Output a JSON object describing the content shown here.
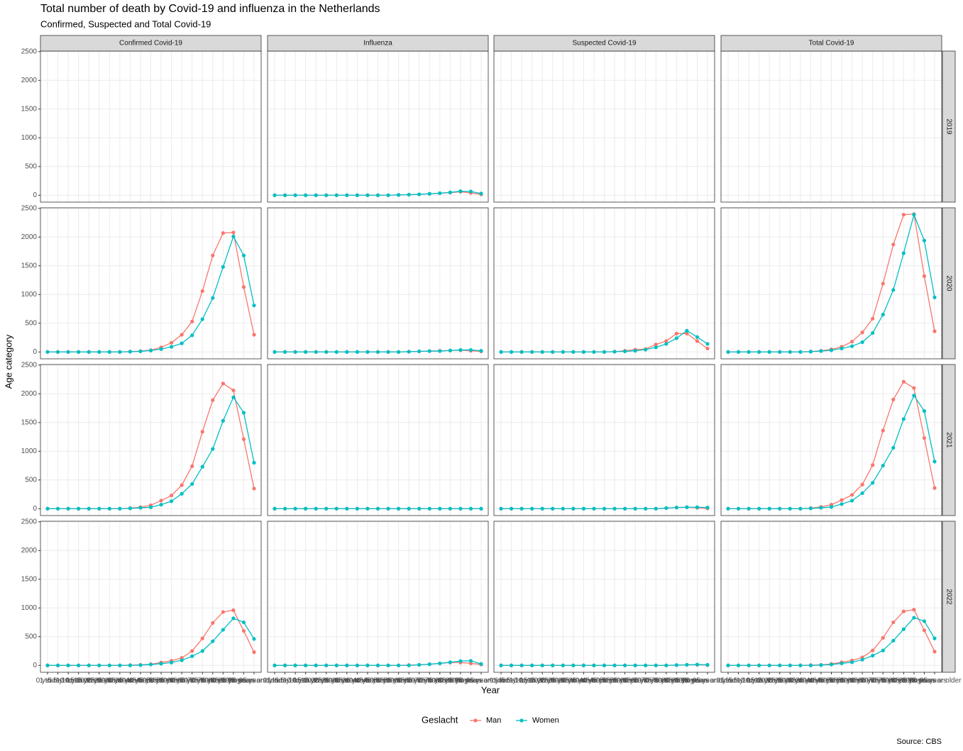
{
  "chart_data": {
    "type": "line",
    "title": "Total number of death by Covid-19 and influenza in the Netherlands",
    "subtitle": "Confirmed, Suspected and Total Covid-19",
    "x_label": "Year",
    "y_label": "Age category",
    "legend_title": "Geslacht",
    "source": "Source: CBS",
    "grid": true,
    "categories": [
      "0 years",
      "1 to 5 years",
      "5 to 10 years",
      "10 to 15 years",
      "15 to 20 years",
      "20 to 25 years",
      "25 to 30 years",
      "30 to 35 years",
      "35 to 40 years",
      "40 to 45 years",
      "45 to 50 years",
      "50 to 55 years",
      "55 to 60 years",
      "60 to 65 years",
      "65 to 70 years",
      "70 to 75 years",
      "75 to 80 years",
      "80 to 85 years",
      "85 to 90 years",
      "90 to 95 years",
      "95 years or older"
    ],
    "ylim": [
      -120,
      2510
    ],
    "yticks": [
      0,
      500,
      1000,
      1500,
      2000,
      2500
    ],
    "series": [
      {
        "name": "Man",
        "color": "#F8766D"
      },
      {
        "name": "Women",
        "color": "#00BFC4"
      }
    ],
    "columns": [
      "Confirmed Covid-19",
      "Influenza",
      "Suspected Covid-19",
      "Total Covid-19"
    ],
    "rows": [
      {
        "label": "2019",
        "panels": [
          null,
          {
            "values": [
              [
                0,
                0,
                0,
                0,
                0,
                0,
                0,
                0,
                0,
                0,
                0,
                0,
                5,
                10,
                15,
                25,
                35,
                45,
                60,
                40,
                15
              ],
              [
                0,
                0,
                0,
                0,
                0,
                0,
                0,
                0,
                0,
                0,
                0,
                0,
                5,
                10,
                15,
                25,
                35,
                50,
                70,
                65,
                30
              ]
            ]
          },
          null,
          null
        ]
      },
      {
        "label": "2020",
        "panels": [
          {
            "values": [
              [
                0,
                0,
                0,
                0,
                0,
                0,
                0,
                0,
                5,
                15,
                30,
                80,
                160,
                300,
                530,
                1060,
                1680,
                2070,
                2080,
                1130,
                300
              ],
              [
                0,
                0,
                0,
                0,
                0,
                0,
                0,
                0,
                5,
                10,
                25,
                50,
                90,
                150,
                290,
                570,
                940,
                1480,
                2010,
                1680,
                810
              ]
            ]
          },
          {
            "values": [
              [
                0,
                0,
                0,
                0,
                0,
                0,
                0,
                0,
                0,
                0,
                0,
                0,
                0,
                5,
                10,
                15,
                20,
                25,
                30,
                20,
                10
              ],
              [
                0,
                0,
                0,
                0,
                0,
                0,
                0,
                0,
                0,
                0,
                0,
                0,
                0,
                5,
                10,
                15,
                15,
                25,
                35,
                35,
                20
              ]
            ]
          },
          {
            "values": [
              [
                0,
                0,
                0,
                0,
                0,
                0,
                0,
                0,
                0,
                0,
                0,
                5,
                20,
                40,
                50,
                130,
                190,
                320,
                320,
                190,
                60
              ],
              [
                0,
                0,
                0,
                0,
                0,
                0,
                0,
                0,
                0,
                0,
                0,
                5,
                10,
                20,
                40,
                80,
                140,
                240,
                370,
                260,
                140
              ]
            ]
          },
          {
            "values": [
              [
                0,
                0,
                0,
                0,
                0,
                0,
                0,
                0,
                8,
                20,
                45,
                90,
                180,
                340,
                580,
                1190,
                1870,
                2390,
                2400,
                1320,
                360
              ],
              [
                0,
                0,
                0,
                0,
                0,
                0,
                0,
                0,
                5,
                15,
                30,
                60,
                100,
                170,
                330,
                650,
                1080,
                1720,
                2390,
                1940,
                950
              ]
            ]
          }
        ]
      },
      {
        "label": "2021",
        "panels": [
          {
            "values": [
              [
                0,
                0,
                0,
                0,
                0,
                0,
                0,
                0,
                10,
                25,
                60,
                140,
                230,
                410,
                740,
                1340,
                1890,
                2180,
                2060,
                1210,
                350
              ],
              [
                0,
                0,
                0,
                0,
                0,
                0,
                0,
                0,
                5,
                15,
                25,
                70,
                130,
                260,
                430,
                730,
                1040,
                1530,
                1940,
                1670,
                800
              ]
            ]
          },
          {
            "values": [
              [
                0,
                0,
                0,
                0,
                0,
                0,
                0,
                0,
                0,
                0,
                0,
                0,
                0,
                0,
                0,
                0,
                0,
                0,
                0,
                0,
                0
              ],
              [
                0,
                0,
                0,
                0,
                0,
                0,
                0,
                0,
                0,
                0,
                0,
                0,
                0,
                0,
                0,
                0,
                0,
                0,
                0,
                0,
                0
              ]
            ]
          },
          {
            "values": [
              [
                0,
                0,
                0,
                0,
                0,
                0,
                0,
                0,
                0,
                0,
                0,
                0,
                0,
                0,
                0,
                0,
                10,
                20,
                25,
                15,
                5
              ],
              [
                0,
                0,
                0,
                0,
                0,
                0,
                0,
                0,
                0,
                0,
                0,
                0,
                0,
                0,
                0,
                0,
                10,
                20,
                25,
                25,
                20
              ]
            ]
          },
          {
            "values": [
              [
                0,
                0,
                0,
                0,
                0,
                0,
                0,
                0,
                10,
                30,
                70,
                150,
                240,
                420,
                760,
                1360,
                1900,
                2210,
                2100,
                1230,
                360
              ],
              [
                0,
                0,
                0,
                0,
                0,
                0,
                0,
                0,
                5,
                15,
                30,
                80,
                140,
                270,
                450,
                750,
                1060,
                1560,
                1970,
                1700,
                820
              ]
            ]
          }
        ]
      },
      {
        "label": "2022",
        "panels": [
          {
            "values": [
              [
                0,
                0,
                0,
                0,
                0,
                0,
                0,
                0,
                5,
                10,
                20,
                50,
                80,
                130,
                250,
                470,
                740,
                930,
                960,
                600,
                230
              ],
              [
                0,
                0,
                0,
                0,
                0,
                0,
                0,
                0,
                0,
                5,
                15,
                30,
                50,
                90,
                160,
                250,
                420,
                620,
                820,
                750,
                460
              ]
            ]
          },
          {
            "values": [
              [
                0,
                0,
                0,
                0,
                0,
                0,
                0,
                0,
                0,
                0,
                0,
                0,
                0,
                5,
                10,
                20,
                35,
                50,
                50,
                35,
                15
              ],
              [
                0,
                0,
                0,
                0,
                0,
                0,
                0,
                0,
                0,
                0,
                0,
                0,
                0,
                0,
                10,
                20,
                35,
                55,
                75,
                80,
                25
              ]
            ]
          },
          {
            "values": [
              [
                0,
                0,
                0,
                0,
                0,
                0,
                0,
                0,
                0,
                0,
                0,
                0,
                0,
                0,
                0,
                0,
                0,
                5,
                10,
                10,
                5
              ],
              [
                0,
                0,
                0,
                0,
                0,
                0,
                0,
                0,
                0,
                0,
                0,
                0,
                0,
                0,
                0,
                0,
                0,
                5,
                10,
                15,
                10
              ]
            ]
          },
          {
            "values": [
              [
                0,
                0,
                0,
                0,
                0,
                0,
                0,
                0,
                5,
                10,
                25,
                55,
                85,
                140,
                260,
                480,
                750,
                940,
                970,
                610,
                240
              ],
              [
                0,
                0,
                0,
                0,
                0,
                0,
                0,
                0,
                0,
                5,
                15,
                35,
                55,
                100,
                170,
                260,
                430,
                630,
                830,
                770,
                470
              ]
            ]
          }
        ]
      }
    ]
  }
}
